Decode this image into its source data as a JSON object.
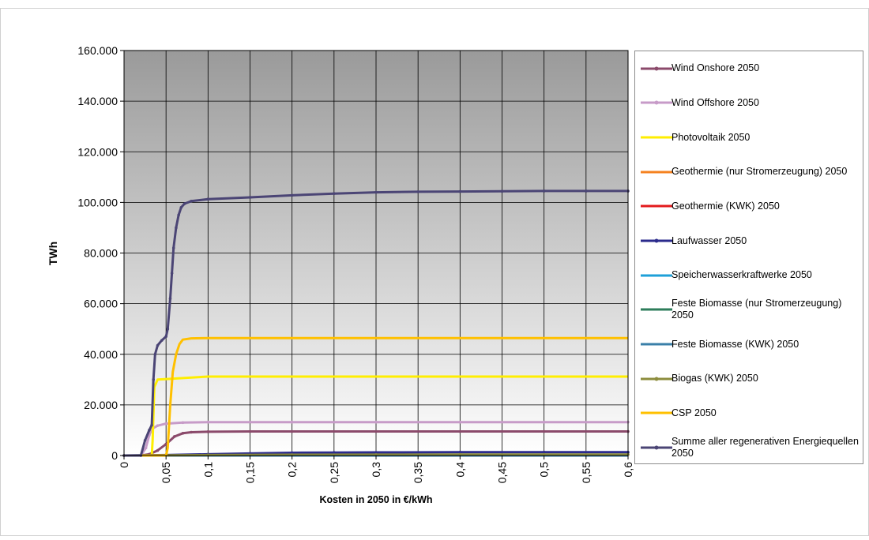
{
  "chart_data": {
    "type": "line",
    "title": "",
    "xlabel": "Kosten in 2050 in €/kWh",
    "ylabel": "TWh",
    "xlim": [
      0,
      0.6
    ],
    "ylim": [
      0,
      160000
    ],
    "x_ticks": [
      "0",
      "0,05",
      "0,1",
      "0,15",
      "0,2",
      "0,25",
      "0,3",
      "0,35",
      "0,4",
      "0,45",
      "0,5",
      "0,55",
      "0,6"
    ],
    "y_ticks": [
      "0",
      "20.000",
      "40.000",
      "60.000",
      "80.000",
      "100.000",
      "120.000",
      "140.000",
      "160.000"
    ],
    "grid": true,
    "legend_position": "right",
    "series": [
      {
        "name": "Wind Onshore 2050",
        "color": "#8b4a6b",
        "marker": true,
        "points": [
          [
            0,
            0
          ],
          [
            0.02,
            0
          ],
          [
            0.03,
            500
          ],
          [
            0.04,
            2000
          ],
          [
            0.05,
            4500
          ],
          [
            0.06,
            7500
          ],
          [
            0.07,
            8800
          ],
          [
            0.08,
            9200
          ],
          [
            0.1,
            9400
          ],
          [
            0.15,
            9500
          ],
          [
            0.2,
            9500
          ],
          [
            0.3,
            9500
          ],
          [
            0.4,
            9500
          ],
          [
            0.5,
            9500
          ],
          [
            0.6,
            9500
          ]
        ]
      },
      {
        "name": "Wind Offshore 2050",
        "color": "#c79bc8",
        "marker": true,
        "points": [
          [
            0,
            0
          ],
          [
            0.02,
            0
          ],
          [
            0.026,
            3000
          ],
          [
            0.03,
            8000
          ],
          [
            0.033,
            10500
          ],
          [
            0.04,
            11800
          ],
          [
            0.05,
            12600
          ],
          [
            0.07,
            13000
          ],
          [
            0.1,
            13200
          ],
          [
            0.2,
            13200
          ],
          [
            0.3,
            13200
          ],
          [
            0.4,
            13200
          ],
          [
            0.5,
            13200
          ],
          [
            0.6,
            13200
          ]
        ]
      },
      {
        "name": "Photovoltaik 2050",
        "color": "#ffee00",
        "marker": false,
        "points": [
          [
            0,
            0
          ],
          [
            0.033,
            0
          ],
          [
            0.034,
            6000
          ],
          [
            0.036,
            27000
          ],
          [
            0.04,
            30000
          ],
          [
            0.055,
            30300
          ],
          [
            0.07,
            30600
          ],
          [
            0.1,
            31200
          ],
          [
            0.2,
            31200
          ],
          [
            0.3,
            31200
          ],
          [
            0.4,
            31200
          ],
          [
            0.5,
            31200
          ],
          [
            0.6,
            31200
          ]
        ]
      },
      {
        "name": "Geothermie (nur Stromerzeugung) 2050",
        "color": "#f58220",
        "marker": false,
        "points": [
          [
            0,
            0
          ],
          [
            0.6,
            0
          ]
        ]
      },
      {
        "name": "Geothermie (KWK) 2050",
        "color": "#e31a1c",
        "marker": false,
        "points": [
          [
            0,
            0
          ],
          [
            0.6,
            0
          ]
        ]
      },
      {
        "name": "Laufwasser 2050",
        "color": "#2b2b8c",
        "marker": true,
        "points": [
          [
            0,
            0
          ],
          [
            0.05,
            200
          ],
          [
            0.1,
            500
          ],
          [
            0.15,
            800
          ],
          [
            0.2,
            1100
          ],
          [
            0.25,
            1200
          ],
          [
            0.3,
            1250
          ],
          [
            0.4,
            1300
          ],
          [
            0.5,
            1300
          ],
          [
            0.6,
            1300
          ]
        ]
      },
      {
        "name": "Speicherwasserkraftwerke 2050",
        "color": "#1ea0d8",
        "marker": false,
        "points": [
          [
            0,
            0
          ],
          [
            0.6,
            0
          ]
        ]
      },
      {
        "name": "Feste Biomasse (nur Stromerzeugung) 2050",
        "color": "#2e7d5b",
        "marker": false,
        "points": [
          [
            0,
            0
          ],
          [
            0.6,
            0
          ]
        ]
      },
      {
        "name": "Feste Biomasse (KWK) 2050",
        "color": "#3a7fa8",
        "marker": false,
        "points": [
          [
            0,
            0
          ],
          [
            0.6,
            0
          ]
        ]
      },
      {
        "name": "Biogas (KWK) 2050",
        "color": "#8c8c3c",
        "marker": true,
        "points": [
          [
            0,
            0
          ],
          [
            0.05,
            100
          ],
          [
            0.1,
            200
          ],
          [
            0.2,
            300
          ],
          [
            0.3,
            350
          ],
          [
            0.4,
            400
          ],
          [
            0.5,
            400
          ],
          [
            0.6,
            400
          ]
        ]
      },
      {
        "name": "CSP 2050",
        "color": "#ffc000",
        "marker": false,
        "points": [
          [
            0,
            0
          ],
          [
            0.05,
            0
          ],
          [
            0.052,
            3000
          ],
          [
            0.055,
            20000
          ],
          [
            0.058,
            33000
          ],
          [
            0.062,
            40000
          ],
          [
            0.066,
            44000
          ],
          [
            0.07,
            45800
          ],
          [
            0.08,
            46300
          ],
          [
            0.1,
            46400
          ],
          [
            0.2,
            46400
          ],
          [
            0.3,
            46400
          ],
          [
            0.4,
            46400
          ],
          [
            0.5,
            46400
          ],
          [
            0.6,
            46400
          ]
        ]
      },
      {
        "name": "Summe aller regenerativen Energiequellen 2050",
        "color": "#4b4575",
        "marker": true,
        "points": [
          [
            0,
            0
          ],
          [
            0.02,
            0
          ],
          [
            0.025,
            6000
          ],
          [
            0.03,
            10000
          ],
          [
            0.033,
            12000
          ],
          [
            0.035,
            30000
          ],
          [
            0.037,
            40000
          ],
          [
            0.04,
            43500
          ],
          [
            0.045,
            45500
          ],
          [
            0.05,
            47000
          ],
          [
            0.052,
            50000
          ],
          [
            0.055,
            62000
          ],
          [
            0.057,
            72000
          ],
          [
            0.059,
            82000
          ],
          [
            0.062,
            90000
          ],
          [
            0.065,
            95000
          ],
          [
            0.068,
            98000
          ],
          [
            0.072,
            99500
          ],
          [
            0.08,
            100500
          ],
          [
            0.1,
            101300
          ],
          [
            0.15,
            102000
          ],
          [
            0.2,
            102800
          ],
          [
            0.25,
            103500
          ],
          [
            0.3,
            104000
          ],
          [
            0.35,
            104200
          ],
          [
            0.4,
            104300
          ],
          [
            0.45,
            104400
          ],
          [
            0.5,
            104500
          ],
          [
            0.55,
            104500
          ],
          [
            0.6,
            104500
          ]
        ]
      }
    ]
  }
}
